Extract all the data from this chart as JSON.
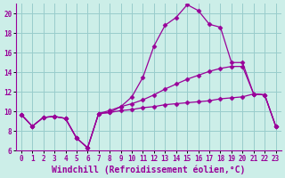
{
  "xlabel": "Windchill (Refroidissement éolien,°C)",
  "bg_color": "#cceee8",
  "grid_color": "#99cccc",
  "line_color": "#990099",
  "xlim": [
    -0.5,
    23.5
  ],
  "ylim": [
    6,
    21
  ],
  "xticks": [
    0,
    1,
    2,
    3,
    4,
    5,
    6,
    7,
    8,
    9,
    10,
    11,
    12,
    13,
    14,
    15,
    16,
    17,
    18,
    19,
    20,
    21,
    22,
    23
  ],
  "yticks": [
    6,
    8,
    10,
    12,
    14,
    16,
    18,
    20
  ],
  "upper_x": [
    0,
    1,
    2,
    3,
    4,
    5,
    6,
    7,
    8,
    9,
    10,
    11,
    12,
    13,
    14,
    15,
    16,
    17,
    18,
    19,
    20,
    21,
    22,
    23
  ],
  "upper_y": [
    9.7,
    8.5,
    9.4,
    9.5,
    9.3,
    7.3,
    6.3,
    9.8,
    9.9,
    10.5,
    11.5,
    13.5,
    16.7,
    18.8,
    19.6,
    20.9,
    20.3,
    18.9,
    18.6,
    15.0,
    15.0,
    11.8,
    11.7,
    8.5
  ],
  "mid_x": [
    0,
    1,
    2,
    3,
    4,
    5,
    6,
    7,
    8,
    9,
    10,
    11,
    12,
    13,
    14,
    15,
    16,
    17,
    18,
    19,
    20,
    21,
    22,
    23
  ],
  "mid_y": [
    9.7,
    8.5,
    9.4,
    9.5,
    9.3,
    7.3,
    6.3,
    9.8,
    10.1,
    10.5,
    10.8,
    11.2,
    11.7,
    12.3,
    12.8,
    13.3,
    13.7,
    14.1,
    14.4,
    14.6,
    14.6,
    11.8,
    11.7,
    8.5
  ],
  "bot_x": [
    0,
    1,
    2,
    3,
    4,
    5,
    6,
    7,
    8,
    9,
    10,
    11,
    12,
    13,
    14,
    15,
    16,
    17,
    18,
    19,
    20,
    21,
    22,
    23
  ],
  "bot_y": [
    9.7,
    8.5,
    9.4,
    9.5,
    9.3,
    7.3,
    6.3,
    9.8,
    9.9,
    10.1,
    10.2,
    10.4,
    10.5,
    10.7,
    10.8,
    10.9,
    11.0,
    11.1,
    11.3,
    11.4,
    11.5,
    11.8,
    11.7,
    8.5
  ],
  "markersize": 2.5,
  "linewidth": 0.9,
  "tick_fontsize": 5.5,
  "xlabel_fontsize": 7.0
}
